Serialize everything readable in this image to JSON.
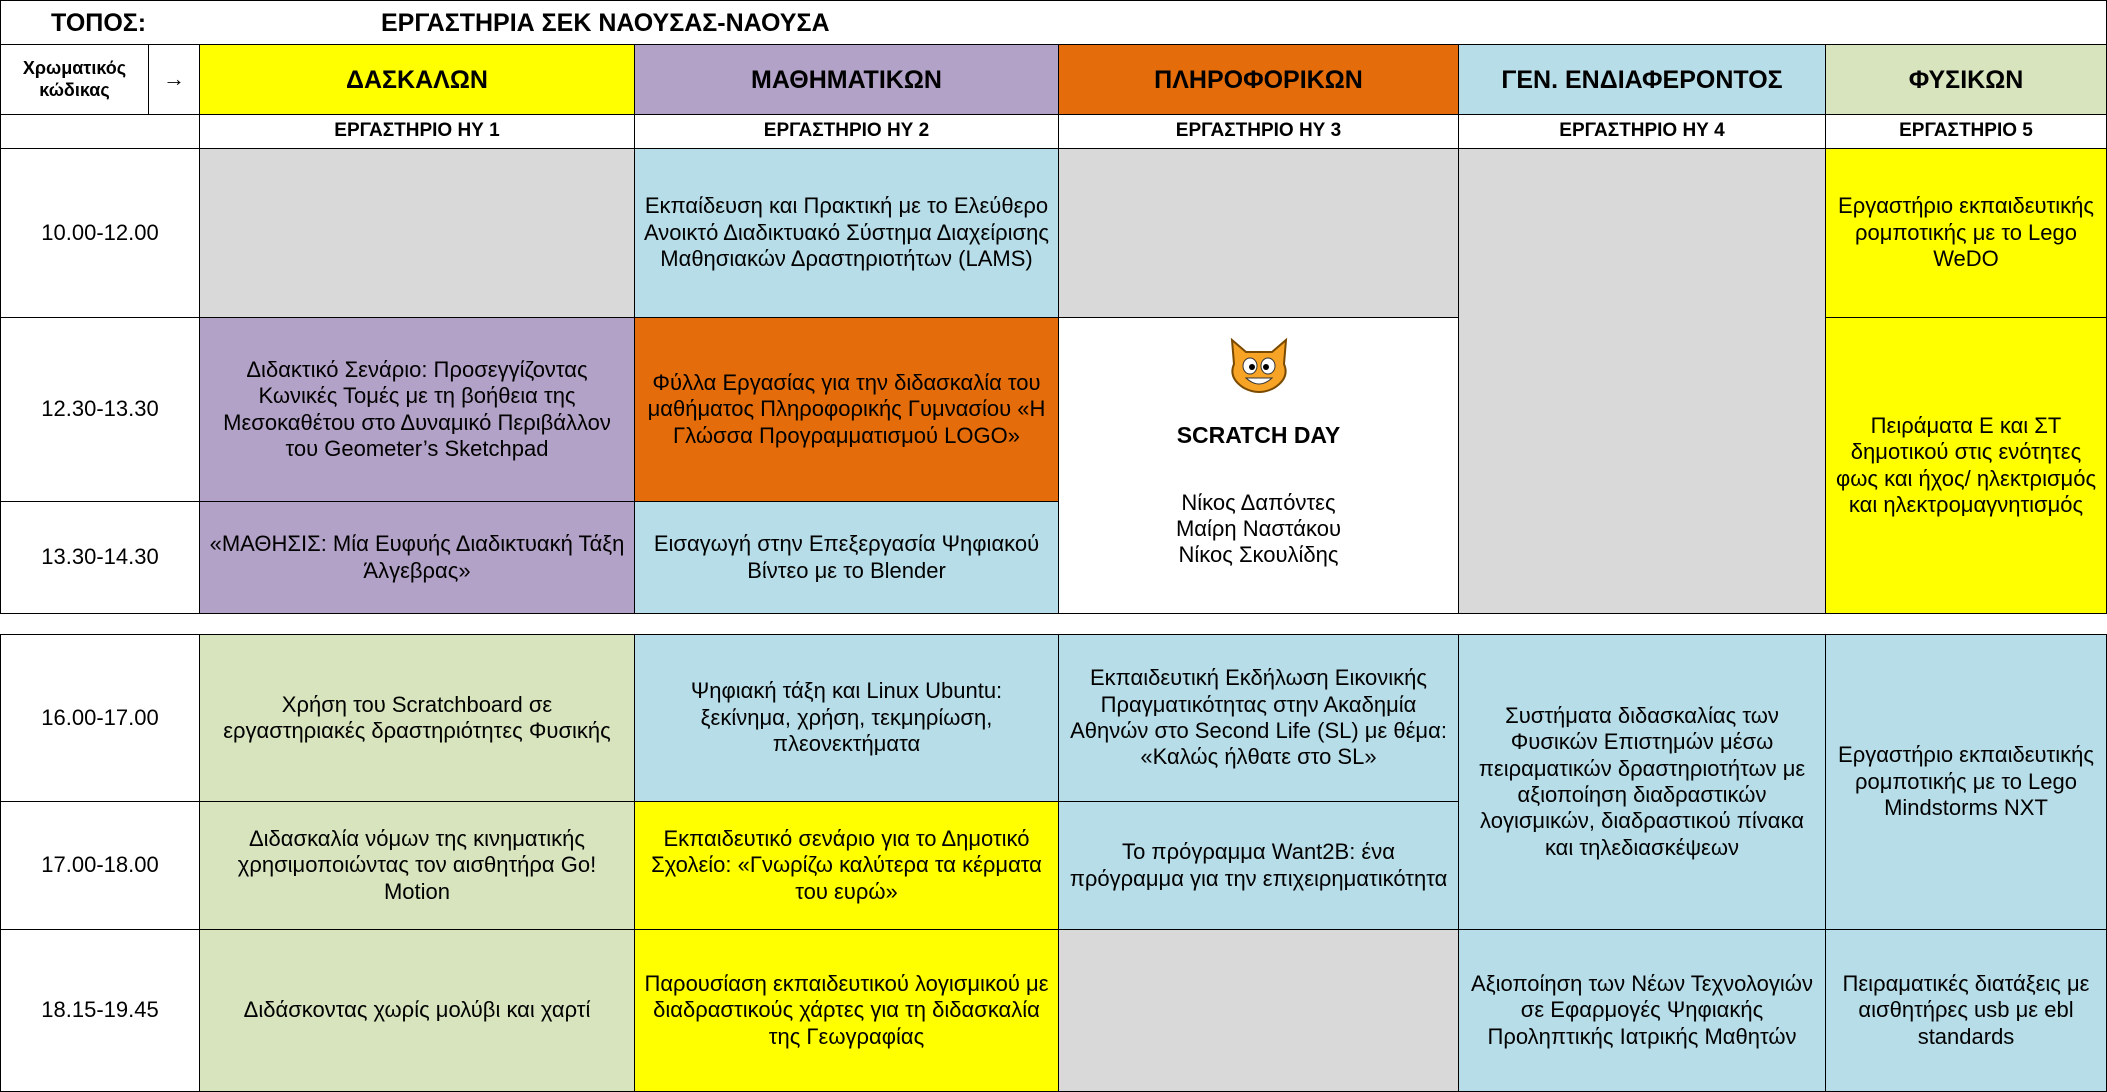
{
  "header": {
    "label": "ΤΟΠΟΣ:",
    "title": "ΕΡΓΑΣΤΗΡΙΑ ΣΕΚ ΝΑΟΥΣΑΣ-ΝΑΟΥΣΑ"
  },
  "legend": {
    "label": "Χρωματικός κώδικας",
    "arrow": "→",
    "categories": [
      "ΔΑΣΚΑΛΩΝ",
      "ΜΑΘΗΜΑΤΙΚΩΝ",
      "ΠΛΗΡΟΦΟΡΙΚΩΝ",
      "ΓΕΝ. ΕΝΔΙΑΦΕΡΟΝΤΟΣ",
      "ΦΥΣΙΚΩΝ"
    ]
  },
  "labs": [
    "ΕΡΓΑΣΤΗΡΙΟ ΗΥ 1",
    "ΕΡΓΑΣΤΗΡΙΟ ΗΥ 2",
    "ΕΡΓΑΣΤΗΡΙΟ ΗΥ 3",
    "ΕΡΓΑΣΤΗΡΙΟ ΗΥ 4",
    "ΕΡΓΑΣΤΗΡΙΟ 5"
  ],
  "rows": [
    {
      "time": "10.00-12.00",
      "cells": [
        "Εκπαίδευση και Πρακτική με το Ελεύθερο Ανοικτό Διαδικτυακό Σύστημα Διαχείρισης Μαθησιακών Δραστηριοτήτων (LAMS)",
        "Εργαστήριο εκπαιδευτικής ρομποτικής με το Lego WeDO"
      ]
    },
    {
      "time": "12.30-13.30",
      "cells": [
        "Διδακτικό Σενάριο: Προσεγγίζοντας Κωνικές Τομές με τη βοήθεια της Μεσοκαθέτου στο Δυναμικό Περιβάλλον του Geometer’s Sketchpad",
        "Φύλλα Εργασίας για την διδασκαλία του μαθήματος Πληροφορικής Γυμνασίου «Η Γλώσσα Προγραμματισμού LOGO»",
        "Πειράματα  Ε και ΣΤ δημοτικού στις ενότητες φως και ήχος/ ηλεκτρισμός και ηλεκτρομαγνητισμός"
      ]
    },
    {
      "time": "13.30-14.30",
      "cells": [
        "«ΜΑΘΗΣΙΣ: Μία Ευφυής Διαδικτυακή Τάξη Άλγεβρας»",
        "Εισαγωγή στην Επεξεργασία Ψηφιακού Βίντεο με το Blender"
      ]
    },
    {
      "time": "16.00-17.00",
      "cells": [
        "Χρήση του Scratchboard σε εργαστηριακές δραστηριότητες Φυσικής",
        "Ψηφιακή τάξη και Linux Ubuntu: ξεκίνημα, χρήση, τεκμηρίωση, πλεονεκτήματα",
        "Εκπαιδευτική Εκδήλωση Εικονικής Πραγματικότητας στην Ακαδημία Αθηνών στο Second Life (SL) με θέμα: «Καλώς ήλθατε στο SL»",
        "Συστήματα διδασκαλίας των Φυσικών Επιστημών μέσω πειραματικών δραστηριοτήτων με αξιοποίηση διαδραστικών λογισμικών, διαδραστικού πίνακα και τηλεδιασκέψεων",
        "Εργαστήριο εκπαιδευτικής ρομποτικής με το Lego Mindstorms NXT"
      ]
    },
    {
      "time": "17.00-18.00",
      "cells": [
        "Διδασκαλία νόμων της κινηματικής χρησιμοποιώντας τον αισθητήρα Go! Motion",
        "Εκπαιδευτικό σενάριο για το Δημοτικό Σχολείο: «Γνωρίζω καλύτερα τα κέρματα του ευρώ»",
        "Το πρόγραμμα Want2B: ένα πρόγραμμα για την επιχειρηματικότητα"
      ]
    },
    {
      "time": "18.15-19.45",
      "cells": [
        "Διδάσκοντας χωρίς μολύβι και χαρτί",
        "Παρουσίαση εκπαιδευτικού λογισμικού με διαδραστικούς χάρτες για τη διδασκαλία της Γεωγραφίας",
        "Αξιοποίηση των Νέων Τεχνολογιών σε Εφαρμογές Ψηφιακής Προληπτικής Ιατρικής Μαθητών",
        "Πειραματικές διατάξεις με αισθητήρες usb  με ebl standards"
      ]
    }
  ],
  "scratch": {
    "title": "SCRATCH DAY",
    "people": [
      "Νίκος Δαπόντες",
      "Μαίρη Ναστάκου",
      "Νίκος Σκουλίδης"
    ]
  }
}
